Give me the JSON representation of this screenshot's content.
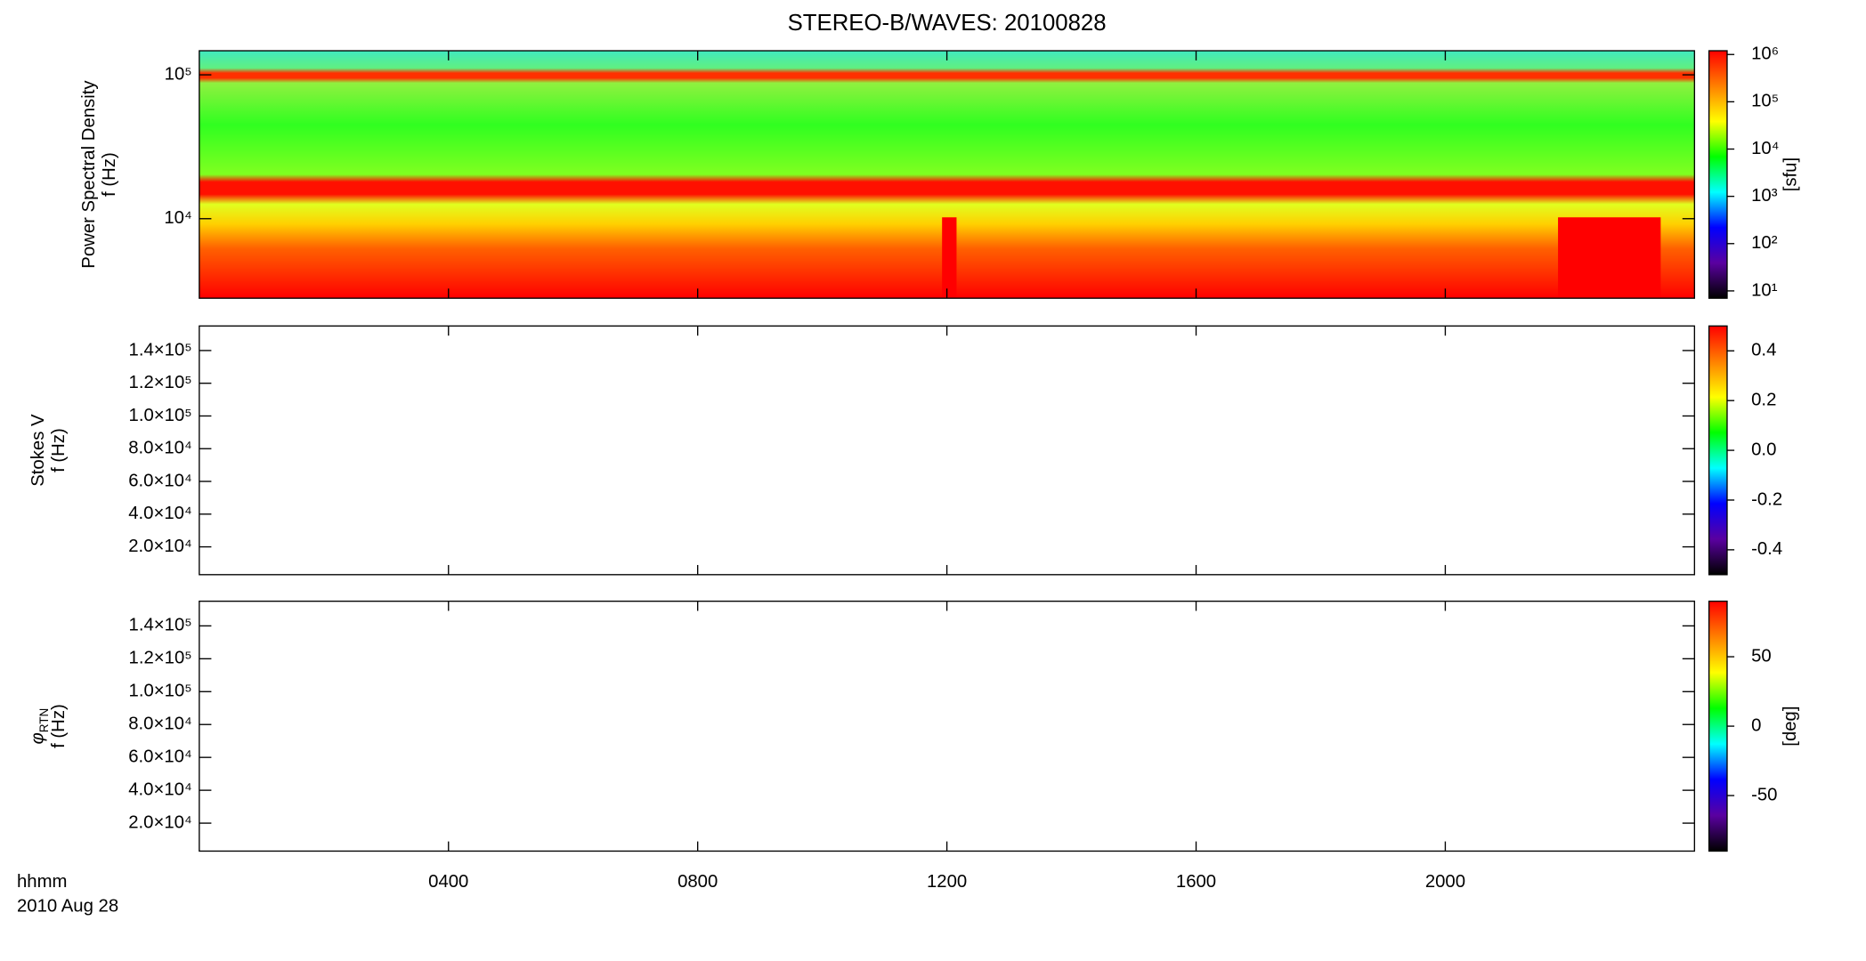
{
  "chart_data": [
    {
      "type": "heatmap",
      "title": "STEREO-B/WAVES: 20100828",
      "ylabel": "Power Spectral Density",
      "yunit": "f (Hz)",
      "log": true,
      "xlim": [
        0,
        24
      ],
      "ylim": [
        2800,
        147000
      ],
      "yticks": [
        {
          "value": 10000,
          "label": "10⁴"
        },
        {
          "value": 100000,
          "label": "10⁵"
        }
      ],
      "clim": [
        7,
        1200000
      ],
      "clog": true,
      "cticks": [
        {
          "value": 10,
          "label": "10¹"
        },
        {
          "value": 100,
          "label": "10²"
        },
        {
          "value": 1000,
          "label": "10³"
        },
        {
          "value": 10000,
          "label": "10⁴"
        },
        {
          "value": 100000,
          "label": "10⁵"
        },
        {
          "value": 1000000,
          "label": "10⁶"
        }
      ],
      "clabel": "[sfu]",
      "colormap": [
        "#000000",
        "#5a00a0",
        "#0000ff",
        "#00ffff",
        "#00ff00",
        "#ffff00",
        "#ff8000",
        "#ff0000"
      ]
    },
    {
      "type": "heatmap",
      "ylabel": "Stokes V",
      "yunit": "f (Hz)",
      "log": false,
      "xlim": [
        0,
        24
      ],
      "ylim": [
        3000,
        155000
      ],
      "yticks": [
        {
          "value": 20000,
          "label": "2.0×10⁴"
        },
        {
          "value": 40000,
          "label": "4.0×10⁴"
        },
        {
          "value": 60000,
          "label": "6.0×10⁴"
        },
        {
          "value": 80000,
          "label": "8.0×10⁴"
        },
        {
          "value": 100000,
          "label": "1.0×10⁵"
        },
        {
          "value": 120000,
          "label": "1.2×10⁵"
        },
        {
          "value": 140000,
          "label": "1.4×10⁵"
        }
      ],
      "clim": [
        -0.5,
        0.5
      ],
      "clog": false,
      "cticks": [
        -0.4,
        -0.2,
        {
          "value": 0,
          "label": "0.0"
        },
        0.2,
        0.4
      ],
      "colormap": [
        "#000000",
        "#5a00a0",
        "#0000ff",
        "#00ffff",
        "#00ff00",
        "#ffff00",
        "#ff8000",
        "#ff0000"
      ]
    },
    {
      "type": "heatmap",
      "ylabel_symbol": "φ",
      "ylabel_subscript": "RTN",
      "yunit": "f (Hz)",
      "log": false,
      "xlim": [
        0,
        24
      ],
      "ylim": [
        3000,
        155000
      ],
      "yticks": [
        {
          "value": 20000,
          "label": "2.0×10⁴"
        },
        {
          "value": 40000,
          "label": "4.0×10⁴"
        },
        {
          "value": 60000,
          "label": "6.0×10⁴"
        },
        {
          "value": 80000,
          "label": "8.0×10⁴"
        },
        {
          "value": 100000,
          "label": "1.0×10⁵"
        },
        {
          "value": 120000,
          "label": "1.2×10⁵"
        },
        {
          "value": 140000,
          "label": "1.4×10⁵"
        }
      ],
      "clim": [
        -90,
        90
      ],
      "clog": false,
      "cticks": [
        -50,
        0,
        50
      ],
      "clabel": "[deg]",
      "xticks": [
        {
          "value": 4,
          "label": "0400"
        },
        {
          "value": 8,
          "label": "0800"
        },
        {
          "value": 12,
          "label": "1200"
        },
        {
          "value": 16,
          "label": "1600"
        },
        {
          "value": 20,
          "label": "2000"
        }
      ],
      "xlabel": "hhmm",
      "date": "2010 Aug 28",
      "colormap": [
        "#000000",
        "#5a00a0",
        "#0000ff",
        "#00ffff",
        "#00ff00",
        "#ffff00",
        "#ff8000",
        "#ff0000"
      ]
    }
  ]
}
